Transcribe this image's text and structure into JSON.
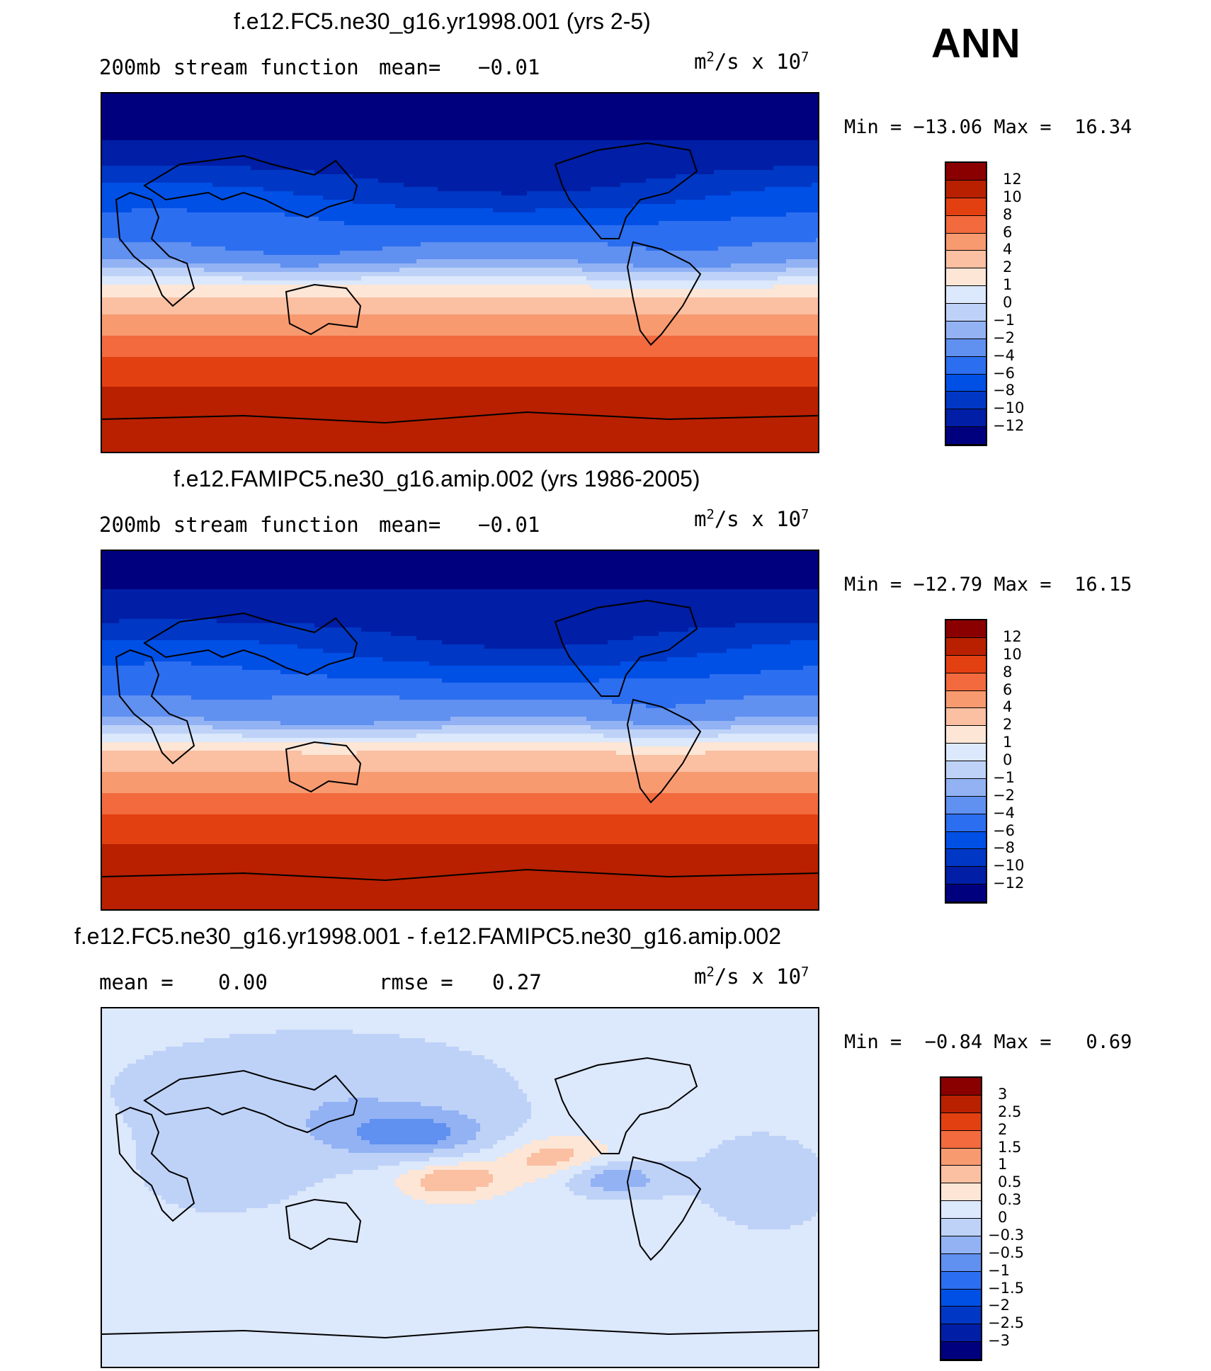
{
  "season": "ANN",
  "colors": {
    "standard": [
      "#00007f",
      "#001ea6",
      "#0037c5",
      "#0050e6",
      "#2c6ef0",
      "#6090f0",
      "#92b2f4",
      "#bed2f8",
      "#dce8fb",
      "#fde6d6",
      "#fbbfa2",
      "#f89a70",
      "#f26a3e",
      "#e34012",
      "#b82000",
      "#8a0000"
    ],
    "difference": [
      "#00007f",
      "#001ea6",
      "#0037c5",
      "#0050e6",
      "#2c6ef0",
      "#6090f0",
      "#92b2f4",
      "#bed2f8",
      "#dce8fb",
      "#fde6d6",
      "#fbbfa2",
      "#f89a70",
      "#f26a3e",
      "#e34012",
      "#b82000",
      "#8a0000"
    ]
  },
  "panels": [
    {
      "title": "f.e12.FC5.ne30_g16.yr1998.001 (yrs 2-5)",
      "variable": "200mb stream function",
      "stat_label": "mean=",
      "stat_value": "−0.01",
      "units": "m",
      "units_exp1": "2",
      "units_mid": "/s x 10",
      "units_exp2": "7",
      "min_label": "Min =",
      "min_value": "−13.06",
      "max_label": "Max =",
      "max_value": "16.34",
      "colorbar_labels": [
        "12",
        "10",
        "8",
        "6",
        "4",
        "2",
        "1",
        "0",
        "−1",
        "−2",
        "−4",
        "−6",
        "−8",
        "−10",
        "−12"
      ],
      "field": "model1"
    },
    {
      "title": "f.e12.FAMIPC5.ne30_g16.amip.002 (yrs 1986-2005)",
      "variable": "200mb stream function",
      "stat_label": "mean=",
      "stat_value": "−0.01",
      "units": "m",
      "units_exp1": "2",
      "units_mid": "/s x 10",
      "units_exp2": "7",
      "min_label": "Min =",
      "min_value": "−12.79",
      "max_label": "Max =",
      "max_value": "16.15",
      "colorbar_labels": [
        "12",
        "10",
        "8",
        "6",
        "4",
        "2",
        "1",
        "0",
        "−1",
        "−2",
        "−4",
        "−6",
        "−8",
        "−10",
        "−12"
      ],
      "field": "model2"
    },
    {
      "title": "f.e12.FC5.ne30_g16.yr1998.001 - f.e12.FAMIPC5.ne30_g16.amip.002",
      "mean_label": "mean =",
      "mean_value": "0.00",
      "rmse_label": "rmse =",
      "rmse_value": "0.27",
      "units": "m",
      "units_exp1": "2",
      "units_mid": "/s x 10",
      "units_exp2": "7",
      "min_label": "Min =",
      "min_value": "−0.84",
      "max_label": "Max =",
      "max_value": "0.69",
      "colorbar_labels": [
        "3",
        "2.5",
        "2",
        "1.5",
        "1",
        "0.5",
        "0.3",
        "0",
        "−0.3",
        "−0.5",
        "−1",
        "−1.5",
        "−2",
        "−2.5",
        "−3"
      ],
      "field": "diff"
    }
  ]
}
